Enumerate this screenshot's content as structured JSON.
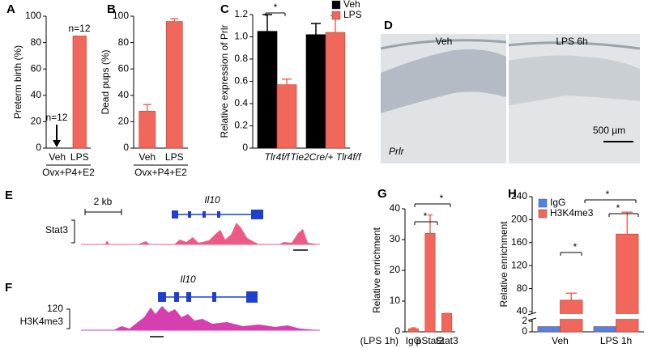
{
  "chart_data": [
    {
      "panel": "A",
      "type": "bar",
      "categories": [
        "Veh",
        "LPS"
      ],
      "values": [
        0,
        85
      ],
      "color": "#f0675b",
      "ylabel": "Preterm birth (%)",
      "ylim": [
        0,
        100
      ],
      "yticks": [
        0,
        20,
        40,
        60,
        80,
        100
      ],
      "annotations": [
        "n=12",
        "n=12"
      ],
      "group_label": "Ovx+P4+E2"
    },
    {
      "panel": "B",
      "type": "bar",
      "categories": [
        "Veh",
        "LPS"
      ],
      "values": [
        28,
        96
      ],
      "errors": [
        5,
        2
      ],
      "color": "#f0675b",
      "ylabel": "Dead pups (%)",
      "ylim": [
        0,
        100
      ],
      "yticks": [
        0,
        20,
        40,
        60,
        80,
        100
      ],
      "group_label": "Ovx+P4+E2"
    },
    {
      "panel": "C",
      "type": "bar",
      "categories": [
        "Tlr4f/f",
        "Tie2Cre/+ Tlr4f/f"
      ],
      "series": [
        {
          "name": "Veh",
          "color": "#000000",
          "values": [
            1.05,
            1.02
          ],
          "errors": [
            0.15,
            0.1
          ]
        },
        {
          "name": "LPS",
          "color": "#f0675b",
          "values": [
            0.57,
            1.04
          ],
          "errors": [
            0.05,
            0.15
          ]
        }
      ],
      "ylabel": "Relative expression of Prlr",
      "ylim": [
        0,
        1.2
      ],
      "yticks": [
        0,
        0.2,
        0.4,
        0.6,
        0.8,
        {
          "value": 1,
          "label": "1.0"
        },
        1.2
      ],
      "legend": "upper right",
      "annotations": [
        "*"
      ]
    },
    {
      "panel": "G",
      "type": "bar",
      "categories": [
        "IgG",
        "pStat3",
        "Stat3"
      ],
      "values": [
        1,
        32,
        6
      ],
      "errors": [
        0.3,
        6,
        0
      ],
      "color": "#f0675b",
      "ylabel": "Relative enrichment",
      "ylim": [
        0,
        40
      ],
      "yticks": [
        0,
        10,
        20,
        30,
        40
      ],
      "x_prefix": "(LPS 1h)",
      "annotations": [
        "*",
        "*"
      ]
    },
    {
      "panel": "H",
      "type": "bar",
      "categories": [
        "Veh",
        "LPS 1h"
      ],
      "series": [
        {
          "name": "IgG",
          "color": "#4a86e8",
          "values": [
            1,
            1
          ]
        },
        {
          "name": "H3K4me3",
          "color": "#f0675b",
          "values": [
            60,
            175
          ],
          "errors": [
            12,
            38
          ]
        }
      ],
      "ylabel": "Relative enrichment",
      "ylim": [
        0,
        240
      ],
      "ybreak": [
        2,
        40
      ],
      "yticks": [
        0,
        2,
        40,
        80,
        120,
        160,
        200,
        240
      ],
      "legend": "upper left",
      "annotations": [
        "*",
        "*",
        "*"
      ]
    }
  ],
  "panel_d": {
    "panel": "D",
    "labels": [
      "Veh",
      "LPS 6h"
    ],
    "gene": "Prlr",
    "scale": "500 µm"
  },
  "panel_e": {
    "panel": "E",
    "scale": "2 kb",
    "gene": "Il10",
    "track": "Stat3"
  },
  "panel_f": {
    "panel": "F",
    "gene": "Il10",
    "scale": "120",
    "track": "H3K4me3"
  }
}
